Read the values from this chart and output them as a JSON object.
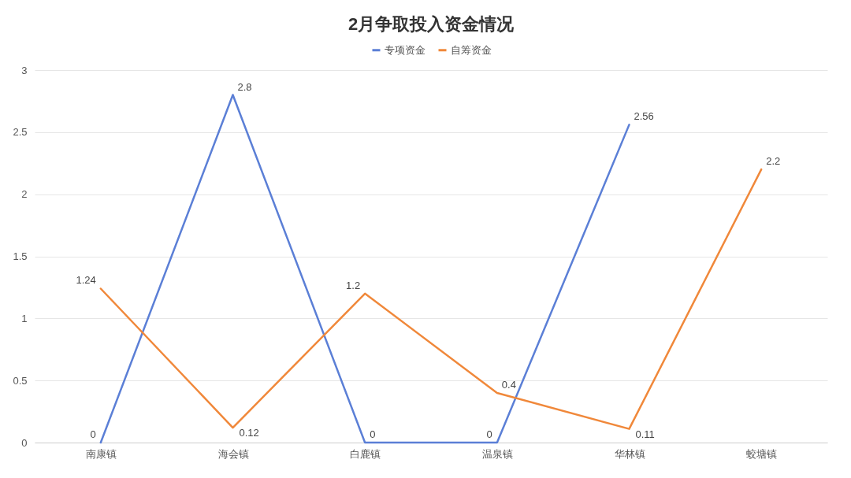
{
  "chart_data": {
    "type": "line",
    "title": "2月争取投入资金情况",
    "categories": [
      "南康镇",
      "海会镇",
      "白鹿镇",
      "温泉镇",
      "华林镇",
      "蛟塘镇"
    ],
    "series": [
      {
        "name": "专项资金",
        "color": "#5b7fd6",
        "values": [
          0,
          2.8,
          0,
          0,
          2.56,
          null
        ]
      },
      {
        "name": "自筹资金",
        "color": "#f0883a",
        "values": [
          1.24,
          0.12,
          1.2,
          0.4,
          0.11,
          2.2
        ]
      }
    ],
    "ylim": [
      0,
      3
    ],
    "yticks": [
      0,
      0.5,
      1,
      1.5,
      2,
      2.5,
      3
    ],
    "grid": "y",
    "legend": "top",
    "data_labels": true
  }
}
